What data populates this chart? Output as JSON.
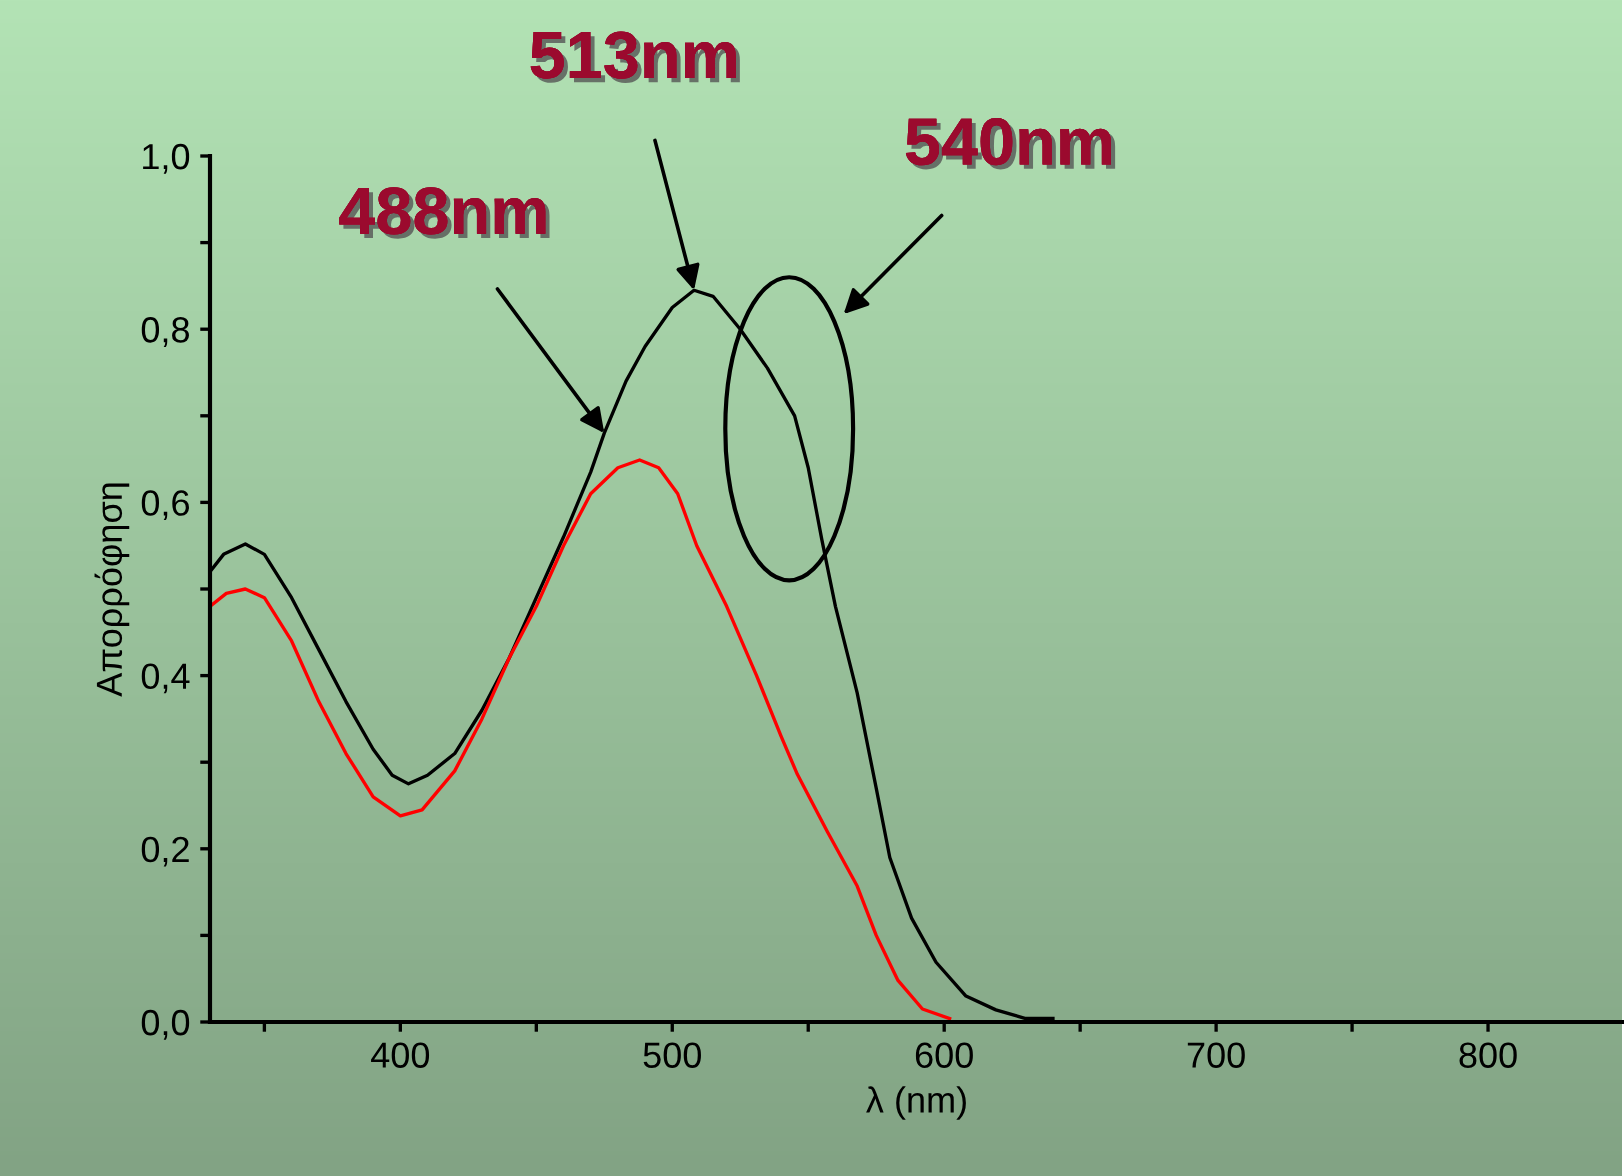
{
  "chart_data": {
    "type": "line",
    "xlabel": "λ (nm)",
    "ylabel": "Απορρόφηση",
    "xlim": [
      330,
      850
    ],
    "ylim": [
      0,
      1.0
    ],
    "xticks": [
      {
        "value": 350,
        "label": null
      },
      400,
      {
        "value": 450,
        "label": null
      },
      500,
      {
        "value": 550,
        "label": null
      },
      600,
      {
        "value": 650,
        "label": null
      },
      700,
      {
        "value": 750,
        "label": null
      },
      800
    ],
    "yticks": [
      {
        "value": 0,
        "label": "0,0"
      },
      {
        "value": 0.1,
        "label": null
      },
      {
        "value": 0.2,
        "label": "0,2"
      },
      {
        "value": 0.3,
        "label": null
      },
      {
        "value": 0.4,
        "label": "0,4"
      },
      {
        "value": 0.5,
        "label": null
      },
      {
        "value": 0.6,
        "label": "0,6"
      },
      {
        "value": 0.7,
        "label": null
      },
      {
        "value": 0.8,
        "label": "0,8"
      },
      {
        "value": 0.9,
        "label": null
      },
      {
        "value": 1.0,
        "label": "1,0"
      }
    ],
    "grid": false,
    "legend": false,
    "marker": "none",
    "line_style": "solid",
    "series": [
      {
        "color": "#000000",
        "x": [
          330,
          335,
          343,
          350,
          360,
          370,
          380,
          390,
          397,
          403,
          410,
          420,
          430,
          440,
          450,
          460,
          470,
          475,
          483,
          490,
          500,
          508,
          515,
          525,
          535,
          545,
          550,
          555,
          560,
          568,
          575,
          580,
          588,
          597,
          608,
          619,
          630,
          640
        ],
        "values": [
          0.52,
          0.54,
          0.552,
          0.54,
          0.49,
          0.43,
          0.37,
          0.315,
          0.285,
          0.275,
          0.285,
          0.31,
          0.36,
          0.42,
          0.49,
          0.56,
          0.635,
          0.68,
          0.74,
          0.78,
          0.825,
          0.845,
          0.838,
          0.8,
          0.755,
          0.7,
          0.64,
          0.557,
          0.48,
          0.38,
          0.27,
          0.19,
          0.12,
          0.069,
          0.03,
          0.014,
          0.004,
          0.004
        ]
      },
      {
        "color": "#ff0000",
        "x": [
          330,
          336,
          343,
          350,
          360,
          370,
          380,
          390,
          400,
          408,
          420,
          430,
          440,
          450,
          460,
          470,
          480,
          488,
          495,
          502,
          509,
          520,
          531,
          540,
          546,
          557,
          568,
          575,
          583,
          592,
          602
        ],
        "values": [
          0.48,
          0.495,
          0.5,
          0.49,
          0.44,
          0.37,
          0.31,
          0.26,
          0.238,
          0.245,
          0.29,
          0.35,
          0.42,
          0.48,
          0.55,
          0.61,
          0.64,
          0.649,
          0.64,
          0.61,
          0.55,
          0.48,
          0.4,
          0.33,
          0.286,
          0.22,
          0.157,
          0.1,
          0.048,
          0.015,
          0.004
        ]
      }
    ],
    "annotations": [
      {
        "text": "488nm",
        "x": 475,
        "y": 0.68
      },
      {
        "text": "513nm",
        "x": 508,
        "y": 0.845
      },
      "540nm"
    ]
  }
}
